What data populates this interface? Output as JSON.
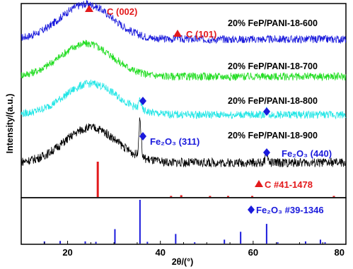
{
  "chart_data": {
    "type": "line",
    "xlabel": "2θ/(°)",
    "ylabel": "Intensity/(a.u.)",
    "xlim": [
      10,
      80
    ],
    "x_ticks": [
      "20",
      "40",
      "60",
      "80"
    ],
    "grid": false,
    "legend": "none",
    "series": [
      {
        "name": "20% FeP/PANI-18-600",
        "color": "#1a1adc",
        "hump_center": 24,
        "hump_height": 0.62,
        "baseline": 0.18,
        "noise": 0.14,
        "extra_peaks": [
          {
            "x": 43.5,
            "height": 0.08
          }
        ]
      },
      {
        "name": "20% FeP/PANI-18-700",
        "color": "#22dd22",
        "hump_center": 24,
        "hump_height": 0.58,
        "baseline": 0.12,
        "noise": 0.14,
        "extra_peaks": []
      },
      {
        "name": "20% FeP/PANI-18-800",
        "color": "#22e6e6",
        "hump_center": 25,
        "hump_height": 0.55,
        "baseline": 0.12,
        "noise": 0.14,
        "extra_peaks": [
          {
            "x": 35.6,
            "height": 0.18
          },
          {
            "x": 62.9,
            "height": 0.08
          }
        ]
      },
      {
        "name": "20% FeP/PANI-18-900",
        "color": "#000000",
        "hump_center": 25,
        "hump_height": 0.62,
        "baseline": 0.12,
        "noise": 0.16,
        "extra_peaks": [
          {
            "x": 35.6,
            "height": 0.65
          },
          {
            "x": 62.9,
            "height": 0.18
          }
        ]
      }
    ],
    "reference_patterns": [
      {
        "name": "C #41-1478",
        "color": "#e31a1c",
        "lines": [
          {
            "x": 26.5,
            "intensity": 100
          },
          {
            "x": 42.3,
            "intensity": 3
          },
          {
            "x": 44.5,
            "intensity": 5
          },
          {
            "x": 50.7,
            "intensity": 2
          },
          {
            "x": 54.6,
            "intensity": 3
          },
          {
            "x": 59.8,
            "intensity": 1
          },
          {
            "x": 77.4,
            "intensity": 3
          }
        ]
      },
      {
        "name": "Fe₂O₃ #39-1346",
        "color": "#1a1adc",
        "lines": [
          {
            "x": 15.0,
            "intensity": 5
          },
          {
            "x": 18.4,
            "intensity": 6
          },
          {
            "x": 23.8,
            "intensity": 5
          },
          {
            "x": 26.1,
            "intensity": 4
          },
          {
            "x": 30.2,
            "intensity": 33
          },
          {
            "x": 35.6,
            "intensity": 100
          },
          {
            "x": 37.2,
            "intensity": 4
          },
          {
            "x": 43.3,
            "intensity": 22
          },
          {
            "x": 47.4,
            "intensity": 3
          },
          {
            "x": 53.8,
            "intensity": 9
          },
          {
            "x": 57.3,
            "intensity": 27
          },
          {
            "x": 62.9,
            "intensity": 45
          },
          {
            "x": 65.3,
            "intensity": 3
          },
          {
            "x": 71.3,
            "intensity": 5
          },
          {
            "x": 74.5,
            "intensity": 9
          },
          {
            "x": 75.5,
            "intensity": 3
          }
        ]
      }
    ],
    "annotations": [
      {
        "text": "C (002)",
        "color": "#e31a1c",
        "marker": "triangle",
        "marker_x": 24.2
      },
      {
        "text": "C (101)",
        "color": "#e31a1c",
        "marker": "triangle",
        "marker_x": 43.5
      },
      {
        "text": "Fe₂O₃ (311)",
        "color": "#1a1adc",
        "marker": "diamond",
        "marker_x": 35.6
      },
      {
        "text": "Fe₂O₃ (440)",
        "color": "#1a1adc",
        "marker": "diamond",
        "marker_x": 62.9
      },
      {
        "text": "",
        "color": "#1a1adc",
        "marker": "diamond",
        "marker_x": 35.6
      },
      {
        "text": "",
        "color": "#1a1adc",
        "marker": "diamond",
        "marker_x": 62.9
      },
      {
        "text": "C #41-1478",
        "color": "#e31a1c",
        "marker": "triangle"
      },
      {
        "text": "Fe₂O₃ #39-1346",
        "color": "#1a1adc",
        "marker": "diamond"
      }
    ]
  }
}
